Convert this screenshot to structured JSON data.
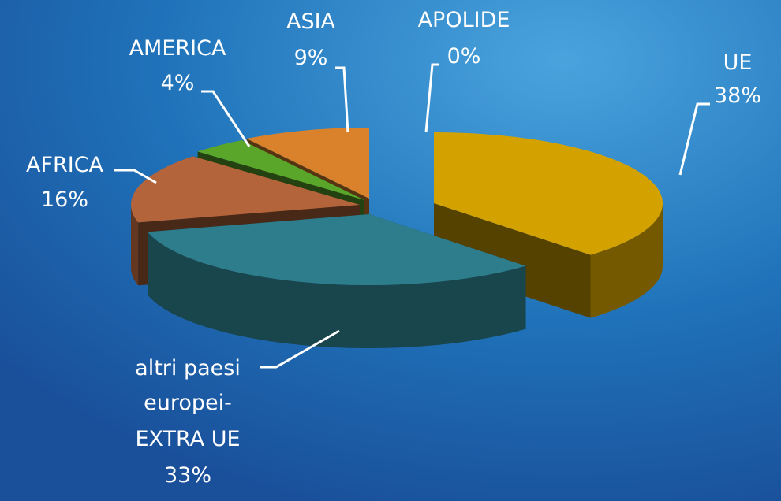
{
  "chart_data": {
    "type": "pie",
    "title": "",
    "categories": [
      "UE",
      "altri paesi europei-EXTRA UE",
      "AFRICA",
      "AMERICA",
      "ASIA",
      "APOLIDE"
    ],
    "values": [
      38,
      33,
      16,
      4,
      9,
      0
    ],
    "units": "%",
    "labels": {
      "ue": {
        "name": "UE",
        "pct": "38%"
      },
      "extra": {
        "line1": "altri paesi",
        "line2": "europei-",
        "line3": "EXTRA UE",
        "pct": "33%"
      },
      "africa": {
        "name": "AFRICA",
        "pct": "16%"
      },
      "america": {
        "name": "AMERICA",
        "pct": "4%"
      },
      "asia": {
        "name": "ASIA",
        "pct": "9%"
      },
      "apolide": {
        "name": "APOLIDE",
        "pct": "0%"
      }
    },
    "colors": {
      "ue": "#d4a200",
      "extra": "#2e7d8c",
      "africa": "#b4643a",
      "america": "#5aa62a",
      "asia": "#d9822b",
      "apolide": "#8aa0b0"
    },
    "style": "3d-exploded",
    "legend": "none"
  }
}
